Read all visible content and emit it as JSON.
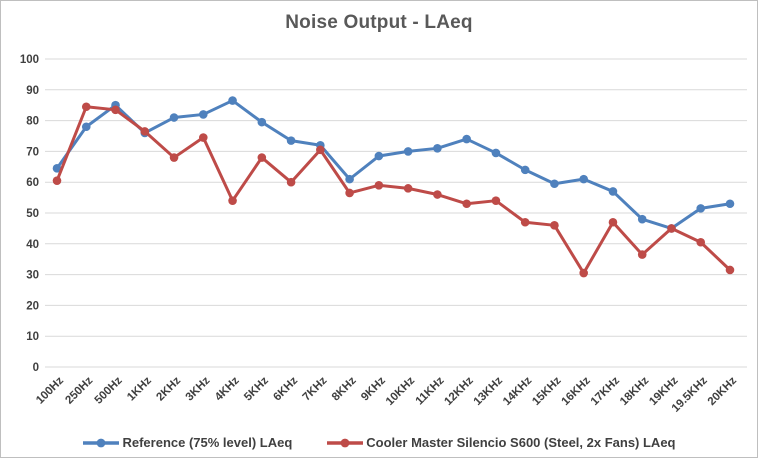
{
  "chart_data": {
    "type": "line",
    "title": "Noise Output - LAeq",
    "categories": [
      "100Hz",
      "250Hz",
      "500Hz",
      "1KHz",
      "2KHz",
      "3KHz",
      "4KHz",
      "5KHz",
      "6KHz",
      "7KHz",
      "8KHz",
      "9KHz",
      "10KHz",
      "11KHz",
      "12KHz",
      "13KHz",
      "14KHz",
      "15KHz",
      "16KHz",
      "17KHz",
      "18KHz",
      "19KHz",
      "19.5KHz",
      "20KHz"
    ],
    "series": [
      {
        "name": "Reference (75% level) LAeq",
        "color": "#4F81BD",
        "values": [
          64.5,
          78,
          85,
          76,
          81,
          82,
          86.5,
          79.5,
          73.5,
          72,
          61,
          68.5,
          70,
          71,
          74,
          69.5,
          64,
          59.5,
          61,
          57,
          48,
          45,
          51.5,
          53
        ]
      },
      {
        "name": "Cooler Master Silencio S600 (Steel, 2x Fans) LAeq",
        "color": "#BE4B48",
        "values": [
          60.5,
          84.5,
          83.5,
          76.5,
          68,
          74.5,
          54,
          68,
          60,
          70.5,
          56.5,
          59,
          58,
          56,
          53,
          54,
          47,
          46,
          30.5,
          47,
          36.5,
          45,
          40.5,
          31.5
        ]
      }
    ],
    "ylim": [
      0,
      100
    ],
    "ytick_step": 10,
    "grid": "horizontal",
    "legend_position": "bottom",
    "title_color": "#595959",
    "axis_text_color": "#404040",
    "gridline_color": "#d9d9d9"
  }
}
